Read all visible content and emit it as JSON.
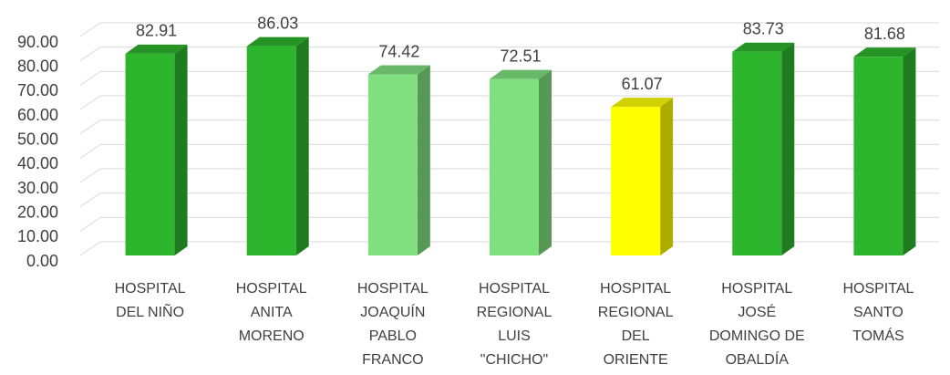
{
  "chart_data": {
    "type": "bar3d",
    "categories": [
      "HOSPITAL DEL NIÑO",
      "HOSPITAL ANITA MORENO",
      "HOSPITAL JOAQUÍN PABLO FRANCO",
      "HOSPITAL REGIONAL LUIS \"CHICHO\"",
      "HOSPITAL REGIONAL DEL ORIENTE",
      "HOSPITAL JOSÉ DOMINGO DE OBALDÍA",
      "HOSPITAL SANTO TOMÁS"
    ],
    "values": [
      82.91,
      86.03,
      74.42,
      72.51,
      61.07,
      83.73,
      81.68
    ],
    "colors": [
      "#2db52d",
      "#2db52d",
      "#80e080",
      "#80e080",
      "#ffff00",
      "#2db52d",
      "#2db52d"
    ],
    "ylim": [
      0,
      90
    ],
    "yticks": [
      {
        "value": 0,
        "label": "0.00"
      },
      {
        "value": 10,
        "label": "10.00"
      },
      {
        "value": 20,
        "label": "20.00"
      },
      {
        "value": 30,
        "label": "30.00"
      },
      {
        "value": 40,
        "label": "40.00"
      },
      {
        "value": 50,
        "label": "50.00"
      },
      {
        "value": 60,
        "label": "60.00"
      },
      {
        "value": 70,
        "label": "70.00"
      },
      {
        "value": 80,
        "label": "80.00"
      },
      {
        "value": 90,
        "label": "90.00"
      }
    ],
    "grid": true
  }
}
